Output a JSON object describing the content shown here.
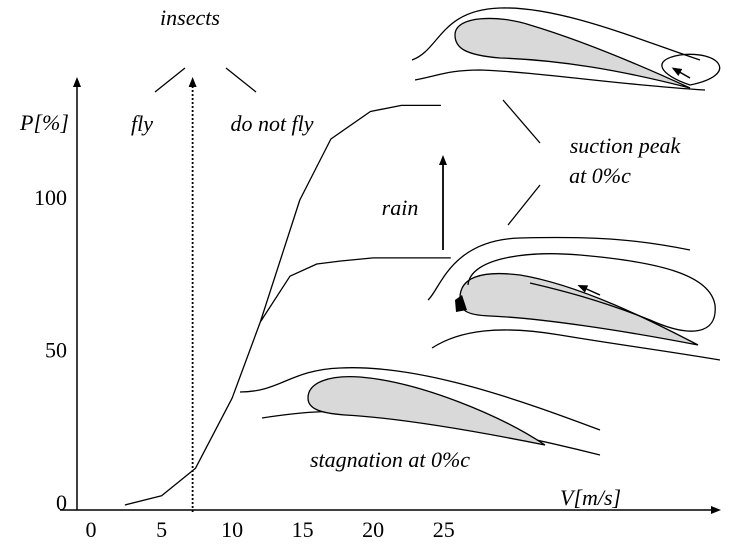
{
  "chart_data": {
    "type": "line",
    "y_label": "P[%]",
    "x_label": "V[m/s]",
    "xlim": [
      -2.2,
      44.3
    ],
    "ylim": [
      0,
      139
    ],
    "xticks": [
      0,
      5,
      10,
      15,
      20,
      25
    ],
    "yticks": [
      0,
      50,
      100
    ],
    "grid": false,
    "series": [
      {
        "color": "#000000",
        "x": [
          2.4,
          5,
          7.4,
          10,
          12,
          14.8,
          17,
          19.8,
          22,
          24.8
        ],
        "values": [
          0,
          3,
          12,
          35,
          60,
          100,
          120,
          129,
          131,
          131
        ]
      },
      {
        "color": "#000000",
        "x": [
          12,
          14.1,
          16,
          17.7,
          20,
          21.9,
          25.5
        ],
        "values": [
          60,
          75,
          79,
          80,
          81,
          81,
          81
        ]
      }
    ],
    "annotations": {
      "insects": "insects",
      "fly": "fly",
      "do_not_fly": "do not fly",
      "insect_threshold_x": 7.2,
      "rain": "rain",
      "suction_1": "suction peak",
      "suction_2": "at 0%c",
      "stagnation": "stagnation at 0%c"
    }
  }
}
